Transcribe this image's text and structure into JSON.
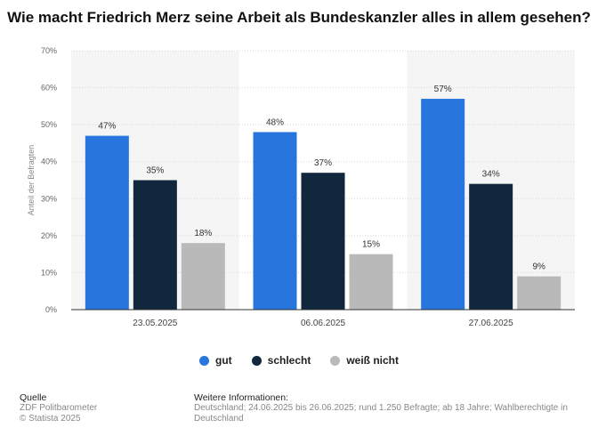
{
  "title": "Wie macht Friedrich Merz seine Arbeit als Bundeskanzler alles in allem gesehen?",
  "chart_data": {
    "type": "bar",
    "categories": [
      "23.05.2025",
      "06.06.2025",
      "27.06.2025"
    ],
    "series": [
      {
        "name": "gut",
        "values": [
          47,
          48,
          57
        ],
        "color": "#2876dd"
      },
      {
        "name": "schlecht",
        "values": [
          35,
          37,
          34
        ],
        "color": "#10273d"
      },
      {
        "name": "weiß nicht",
        "values": [
          18,
          15,
          9
        ],
        "color": "#b9b9b9"
      }
    ],
    "ylabel": "Anteil der Befragten",
    "ylim": [
      0,
      70
    ],
    "yticks": [
      "0%",
      "10%",
      "20%",
      "30%",
      "40%",
      "50%",
      "60%",
      "70%"
    ],
    "value_suffix": "%",
    "legend_position": "bottom",
    "grid": true
  },
  "footer": {
    "source_heading": "Quelle",
    "source_line1": "ZDF Politbarometer",
    "source_line2": "© Statista 2025",
    "info_heading": "Weitere Informationen:",
    "info_text": "Deutschland; 24.06.2025 bis 26.06.2025; rund 1.250 Befragte; ab 18 Jahre; Wahlberechtigte in Deutschland"
  }
}
